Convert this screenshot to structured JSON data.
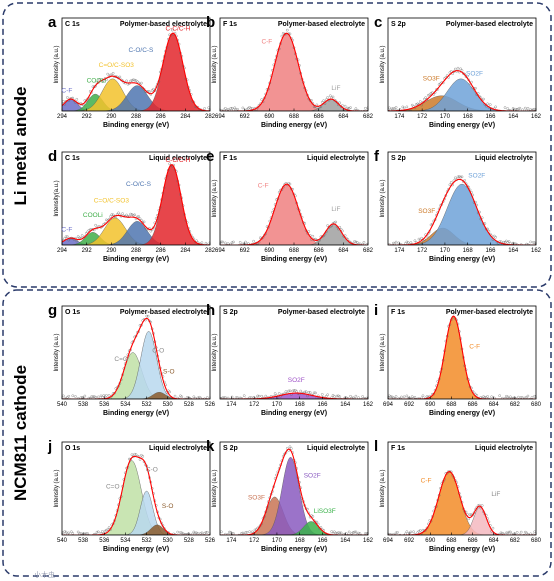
{
  "sections": [
    {
      "label": "Li metal anode"
    },
    {
      "label": "NCM811 cathode"
    }
  ],
  "watermark": "小木虫",
  "colors": {
    "C-F": "#6b6ec8",
    "COOLi": "#3fae49",
    "C=O/C-SO3": "#f2c22c",
    "C-O/C-S": "#4f76b0",
    "C-C/C-H": "#e3262b",
    "C-F(F1s)": "#f08080",
    "LiF": "#a0a0a0",
    "SO3F": "#cc7a2a",
    "SO2F": "#6fa2d8",
    "C=O": "#bfe0a6",
    "C-O": "#b8d8ee",
    "S-O": "#8b5a2b",
    "SO2F_h": "#a055c8",
    "SO3F_k": "#c97455",
    "SO2F_k": "#8a5ac0",
    "LiSO3F": "#3ab24a",
    "C-F_cath": "#f28c28",
    "LiF_cath": "#f4b8bf",
    "fit": "#ff0000"
  },
  "chart_data": [
    {
      "id": "a",
      "type": "area",
      "corner": "C 1s",
      "title": "Polymer-based electrolyte",
      "xlabel": "Binding energy (eV)",
      "ylabel": "Intensity (a.u.)",
      "xlim": [
        294,
        282
      ],
      "xticks": [
        294,
        292,
        290,
        288,
        286,
        284,
        282
      ],
      "ylim": [
        0,
        1.1
      ],
      "series": [
        {
          "name": "C-F",
          "center": 293.3,
          "sigma": 0.55,
          "amp": 0.14,
          "color": "#6b6ec8",
          "label_x": 293.6,
          "label_y": 0.22
        },
        {
          "name": "COOLi",
          "center": 291.3,
          "sigma": 0.6,
          "amp": 0.2,
          "color": "#3fae49",
          "label_x": 291.2,
          "label_y": 0.34
        },
        {
          "name": "C=O/C-SO3",
          "center": 289.9,
          "sigma": 0.85,
          "amp": 0.38,
          "color": "#f2c22c",
          "label_x": 289.6,
          "label_y": 0.52
        },
        {
          "name": "C-O/C-S",
          "center": 287.9,
          "sigma": 0.85,
          "amp": 0.3,
          "color": "#4f76b0",
          "label_x": 287.6,
          "label_y": 0.7
        },
        {
          "name": "C-C/C-H",
          "center": 285.0,
          "sigma": 0.8,
          "amp": 0.92,
          "color": "#e3262b",
          "label_x": 284.6,
          "label_y": 0.95
        }
      ]
    },
    {
      "id": "b",
      "type": "area",
      "corner": "F 1s",
      "title": "Polymer-based electrolyte",
      "xlabel": "Binding energy (eV)",
      "ylabel": "Intensity (a.u.)",
      "xlim": [
        694,
        682
      ],
      "xticks": [
        694,
        692,
        690,
        688,
        686,
        684,
        682
      ],
      "ylim": [
        0,
        1.1
      ],
      "series": [
        {
          "name": "C-F",
          "center": 688.6,
          "sigma": 0.95,
          "amp": 0.92,
          "color": "#f08080",
          "label_x": 690.2,
          "label_y": 0.8
        },
        {
          "name": "LiF",
          "center": 685.0,
          "sigma": 0.6,
          "amp": 0.14,
          "color": "#a0a0a0",
          "label_x": 684.6,
          "label_y": 0.25
        }
      ]
    },
    {
      "id": "c",
      "type": "area",
      "corner": "S 2p",
      "title": "Polymer-based electrolyte",
      "xlabel": "Binding energy (eV)",
      "ylabel": "Intensity (a.u.)",
      "xlim": [
        175,
        162
      ],
      "xticks": [
        174,
        172,
        170,
        168,
        166,
        164,
        162
      ],
      "ylim": [
        0,
        1.1
      ],
      "series": [
        {
          "name": "SO3F",
          "center": 170.3,
          "sigma": 1.4,
          "amp": 0.18,
          "color": "#cc7a2a",
          "label_x": 171.2,
          "label_y": 0.36
        },
        {
          "name": "SO2F",
          "center": 168.6,
          "sigma": 1.2,
          "amp": 0.38,
          "color": "#6fa2d8",
          "label_x": 167.4,
          "label_y": 0.42
        }
      ]
    },
    {
      "id": "d",
      "type": "area",
      "corner": "C 1s",
      "title": "Liquid electrolyte",
      "xlabel": "Binding energy (eV)",
      "ylabel": "Intensity(a.u.)",
      "xlim": [
        294,
        282
      ],
      "xticks": [
        294,
        292,
        290,
        288,
        286,
        284,
        282
      ],
      "ylim": [
        0,
        1.1
      ],
      "series": [
        {
          "name": "C-F",
          "center": 293.3,
          "sigma": 0.55,
          "amp": 0.08,
          "color": "#6b6ec8",
          "label_x": 293.6,
          "label_y": 0.16
        },
        {
          "name": "COOLi",
          "center": 291.5,
          "sigma": 0.6,
          "amp": 0.15,
          "color": "#3fae49",
          "label_x": 291.5,
          "label_y": 0.33
        },
        {
          "name": "C=O/C-SO3",
          "center": 289.7,
          "sigma": 0.85,
          "amp": 0.32,
          "color": "#f2c22c",
          "label_x": 290.0,
          "label_y": 0.5
        },
        {
          "name": "C-O/C-S",
          "center": 287.9,
          "sigma": 0.8,
          "amp": 0.28,
          "color": "#4f76b0",
          "label_x": 287.8,
          "label_y": 0.7
        },
        {
          "name": "C-C/C-H",
          "center": 285.1,
          "sigma": 0.75,
          "amp": 0.95,
          "color": "#e3262b",
          "label_x": 284.6,
          "label_y": 0.98
        }
      ]
    },
    {
      "id": "e",
      "type": "area",
      "corner": "F 1s",
      "title": "Liquid electrolyte",
      "xlabel": "Binding energy (eV)",
      "ylabel": "Intensity (a.u.)",
      "xlim": [
        694,
        682
      ],
      "xticks": [
        694,
        692,
        690,
        688,
        686,
        684,
        682
      ],
      "ylim": [
        0,
        1.1
      ],
      "series": [
        {
          "name": "C-F",
          "center": 688.6,
          "sigma": 0.95,
          "amp": 0.72,
          "color": "#f08080",
          "label_x": 690.5,
          "label_y": 0.68
        },
        {
          "name": "LiF",
          "center": 684.8,
          "sigma": 0.65,
          "amp": 0.25,
          "color": "#a0a0a0",
          "label_x": 684.6,
          "label_y": 0.4
        }
      ]
    },
    {
      "id": "f",
      "type": "area",
      "corner": "S 2p",
      "title": "Liquid electrolyte",
      "xlabel": "Binding energy (eV)",
      "ylabel": "Intensity (a.u.)",
      "xlim": [
        175,
        162
      ],
      "xticks": [
        174,
        172,
        170,
        168,
        166,
        164,
        162
      ],
      "ylim": [
        0,
        1.1
      ],
      "series": [
        {
          "name": "SO3F",
          "center": 170.2,
          "sigma": 1.0,
          "amp": 0.2,
          "color": "#cc7a2a",
          "label_x": 171.6,
          "label_y": 0.38
        },
        {
          "name": "SO2F",
          "center": 168.5,
          "sigma": 1.3,
          "amp": 0.72,
          "color": "#6fa2d8",
          "label_x": 167.2,
          "label_y": 0.8
        }
      ]
    },
    {
      "id": "g",
      "type": "area",
      "corner": "O 1s",
      "title": "Polymer-based electrolyte",
      "xlabel": "Binding energy (eV)",
      "ylabel": "Intensity (a.u.)",
      "xlim": [
        540,
        526
      ],
      "xticks": [
        540,
        538,
        536,
        534,
        532,
        530,
        528,
        526
      ],
      "ylim": [
        0,
        1.1
      ],
      "series": [
        {
          "name": "C=O",
          "center": 533.3,
          "sigma": 0.85,
          "amp": 0.55,
          "color": "#bfe0a6",
          "label_x": 534.4,
          "label_y": 0.45
        },
        {
          "name": "C-O",
          "center": 531.8,
          "sigma": 0.75,
          "amp": 0.8,
          "color": "#b8d8ee",
          "label_x": 530.9,
          "label_y": 0.55
        },
        {
          "name": "S-O",
          "center": 530.8,
          "sigma": 0.6,
          "amp": 0.08,
          "color": "#8b5a2b",
          "label_x": 529.9,
          "label_y": 0.3
        }
      ]
    },
    {
      "id": "h",
      "type": "area",
      "corner": "S 2p",
      "title": "Polymer-based electrolyte",
      "xlabel": "Binding energy (eV)",
      "ylabel": "Intensity (a.u.)",
      "xlim": [
        175,
        162
      ],
      "xticks": [
        174,
        172,
        170,
        168,
        166,
        164,
        162
      ],
      "ylim": [
        0,
        1.1
      ],
      "series": [
        {
          "name": "SO2F",
          "center": 168.3,
          "sigma": 1.4,
          "amp": 0.07,
          "color": "#a055c8",
          "label_x": 168.3,
          "label_y": 0.2
        }
      ]
    },
    {
      "id": "i",
      "type": "area",
      "corner": "F 1s",
      "title": "Polymer-based electrolyte",
      "xlabel": "Binding energy (eV)",
      "ylabel": "Intensity (a.u.)",
      "xlim": [
        694,
        680
      ],
      "xticks": [
        694,
        692,
        690,
        688,
        686,
        684,
        682,
        680
      ],
      "ylim": [
        0,
        1.1
      ],
      "series": [
        {
          "name": "C-F",
          "center": 687.8,
          "sigma": 0.8,
          "amp": 0.98,
          "color": "#f28c28",
          "label_x": 685.8,
          "label_y": 0.6
        }
      ]
    },
    {
      "id": "j",
      "type": "area",
      "corner": "O 1s",
      "title": "Liquid electrolyte",
      "xlabel": "Binding energy (eV)",
      "ylabel": "Intensity (a.u.)",
      "xlim": [
        540,
        526
      ],
      "xticks": [
        540,
        538,
        536,
        534,
        532,
        530,
        528,
        526
      ],
      "ylim": [
        0,
        1.1
      ],
      "series": [
        {
          "name": "C=O",
          "center": 533.4,
          "sigma": 0.9,
          "amp": 0.88,
          "color": "#bfe0a6",
          "label_x": 535.2,
          "label_y": 0.55
        },
        {
          "name": "C-O",
          "center": 532.0,
          "sigma": 0.6,
          "amp": 0.52,
          "color": "#b8d8ee",
          "label_x": 531.5,
          "label_y": 0.75
        },
        {
          "name": "S-O",
          "center": 531.0,
          "sigma": 0.6,
          "amp": 0.12,
          "color": "#8b5a2b",
          "label_x": 530.0,
          "label_y": 0.32
        }
      ]
    },
    {
      "id": "k",
      "type": "area",
      "corner": "S 2p",
      "title": "Liquid electrolyte",
      "xlabel": "Binding energy (eV)",
      "ylabel": "Intensity (a.u.)",
      "xlim": [
        175,
        162
      ],
      "xticks": [
        174,
        172,
        170,
        168,
        166,
        164,
        162
      ],
      "ylim": [
        0,
        1.1
      ],
      "series": [
        {
          "name": "SO3F",
          "center": 170.2,
          "sigma": 0.75,
          "amp": 0.45,
          "color": "#c97455",
          "label_x": 171.8,
          "label_y": 0.42
        },
        {
          "name": "SO2F",
          "center": 168.8,
          "sigma": 0.75,
          "amp": 0.92,
          "color": "#8a5ac0",
          "label_x": 166.9,
          "label_y": 0.68
        },
        {
          "name": "LiSO3F",
          "center": 167.0,
          "sigma": 0.65,
          "amp": 0.16,
          "color": "#3ab24a",
          "label_x": 165.8,
          "label_y": 0.26
        }
      ]
    },
    {
      "id": "l",
      "type": "area",
      "corner": "F 1s",
      "title": "Liquid electrolyte",
      "xlabel": "Binding energy (eV)",
      "ylabel": "Intensity (a.u.)",
      "xlim": [
        694,
        680
      ],
      "xticks": [
        694,
        692,
        690,
        688,
        686,
        684,
        682,
        680
      ],
      "ylim": [
        0,
        1.1
      ],
      "series": [
        {
          "name": "C-F",
          "center": 688.2,
          "sigma": 1.0,
          "amp": 0.75,
          "color": "#f28c28",
          "label_x": 690.4,
          "label_y": 0.62
        },
        {
          "name": "LiF",
          "center": 685.3,
          "sigma": 0.6,
          "amp": 0.33,
          "color": "#f4b8bf",
          "label_x": 683.8,
          "label_y": 0.46
        }
      ]
    }
  ]
}
